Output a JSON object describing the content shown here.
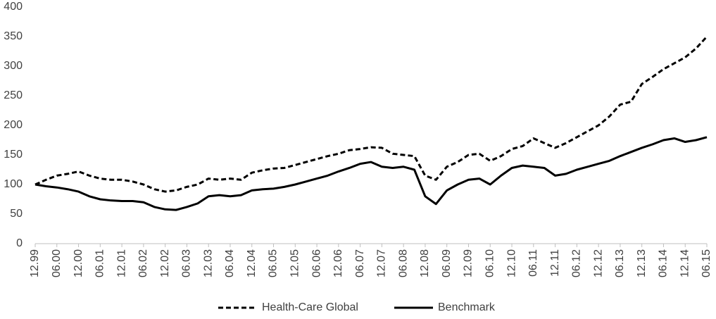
{
  "chart_data": {
    "type": "line",
    "categories": [
      "12.99",
      null,
      "06.00",
      null,
      "12.00",
      null,
      "06.01",
      null,
      "12.01",
      null,
      "06.02",
      null,
      "12.02",
      null,
      "06.03",
      null,
      "12.03",
      null,
      "06.04",
      null,
      "12.04",
      null,
      "06.05",
      null,
      "12.05",
      null,
      "06.06",
      null,
      "12.06",
      null,
      "06.07",
      null,
      "12.07",
      null,
      "06.08",
      null,
      "12.08",
      null,
      "06.09",
      null,
      "12.09",
      null,
      "06.10",
      null,
      "12.10",
      null,
      "06.11",
      null,
      "12.11",
      null,
      "06.12",
      null,
      "12.12",
      null,
      "06.13",
      null,
      "12.13",
      null,
      "06.14",
      null,
      "12.14",
      null,
      "06.15"
    ],
    "series": [
      {
        "name": "Health-Care Global",
        "color": "#000000",
        "style": "dashed",
        "values": [
          100,
          108,
          115,
          118,
          122,
          115,
          110,
          108,
          108,
          105,
          100,
          92,
          88,
          90,
          96,
          100,
          110,
          108,
          110,
          108,
          120,
          124,
          127,
          128,
          133,
          138,
          143,
          148,
          152,
          158,
          160,
          163,
          162,
          152,
          150,
          148,
          115,
          108,
          130,
          138,
          150,
          152,
          140,
          148,
          160,
          165,
          178,
          170,
          162,
          170,
          180,
          190,
          200,
          215,
          235,
          240,
          270,
          282,
          295,
          305,
          315,
          330,
          350
        ]
      },
      {
        "name": "Benchmark",
        "color": "#000000",
        "style": "solid",
        "values": [
          100,
          97,
          95,
          92,
          88,
          80,
          75,
          73,
          72,
          72,
          70,
          62,
          58,
          57,
          62,
          68,
          80,
          82,
          80,
          82,
          90,
          92,
          93,
          96,
          100,
          105,
          110,
          115,
          122,
          128,
          135,
          138,
          130,
          128,
          130,
          125,
          80,
          67,
          90,
          100,
          108,
          110,
          100,
          115,
          128,
          132,
          130,
          128,
          115,
          118,
          125,
          130,
          135,
          140,
          148,
          155,
          162,
          168,
          175,
          178,
          172,
          175,
          180
        ]
      }
    ],
    "ylim": [
      0,
      400
    ],
    "yticks": [
      0,
      50,
      100,
      150,
      200,
      250,
      300,
      350,
      400
    ],
    "grid": false,
    "legend": "bottom"
  }
}
